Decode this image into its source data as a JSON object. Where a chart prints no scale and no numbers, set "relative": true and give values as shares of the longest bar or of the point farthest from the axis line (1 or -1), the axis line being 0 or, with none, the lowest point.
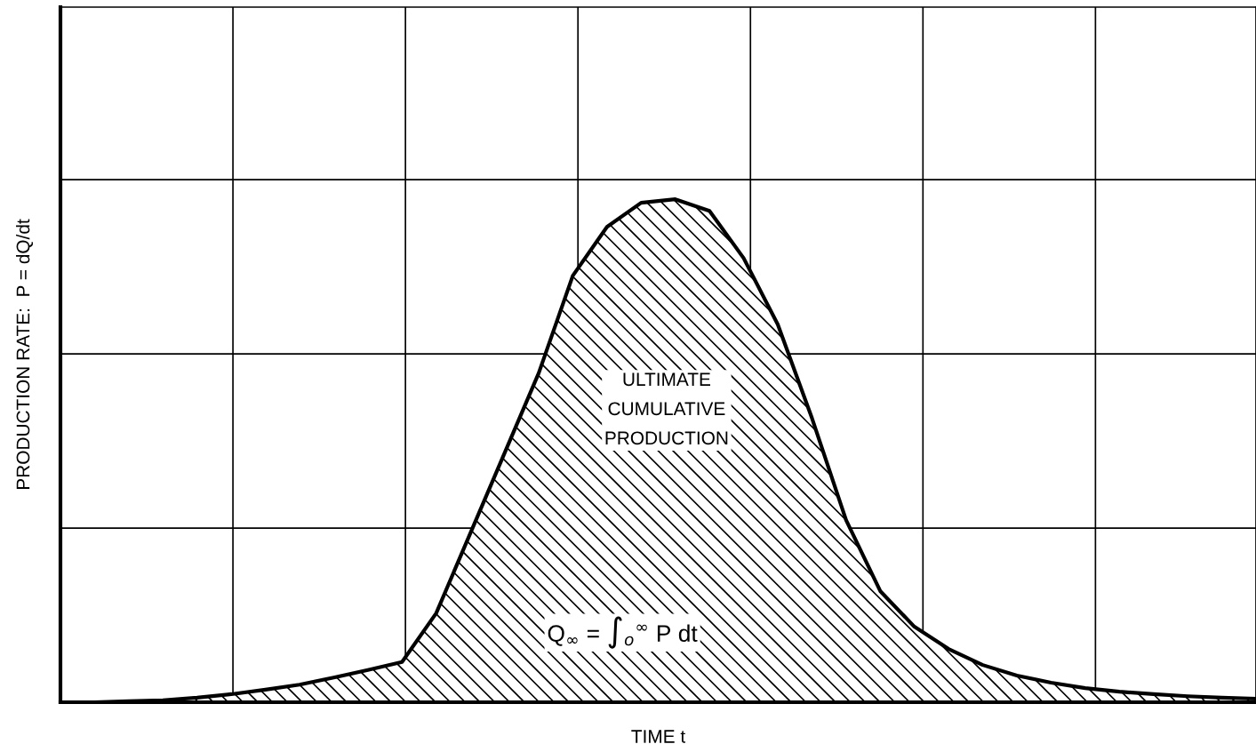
{
  "chart_data": {
    "type": "area",
    "relative": true,
    "xlabel": "TIME t",
    "ylabel": "PRODUCTION RATE:  P = dQ/dt",
    "categories": [
      null,
      null,
      null,
      null,
      null,
      null,
      null,
      null,
      null,
      null,
      null,
      null,
      null,
      null,
      null,
      null,
      null,
      null,
      null,
      null,
      null,
      null,
      null,
      null,
      null,
      null,
      null,
      null,
      null,
      null,
      null,
      null,
      null,
      null,
      null,
      null
    ],
    "series": [
      {
        "color": "#000000",
        "values": [
          0,
          0,
          0.002,
          0.004,
          0.009,
          0.016,
          0.025,
          0.035,
          0.049,
          0.064,
          0.08,
          0.177,
          0.336,
          0.495,
          0.654,
          0.848,
          0.945,
          0.993,
          1.0,
          0.977,
          0.883,
          0.751,
          0.565,
          0.362,
          0.221,
          0.15,
          0.106,
          0.074,
          0.053,
          0.039,
          0.028,
          0.021,
          0.016,
          0.012,
          0.009,
          0.007
        ]
      }
    ],
    "annotations": [
      "ULTIMATE\nCUMULATIVE\nPRODUCTION",
      "Q$_{∞}$ = ∫$_{o}$$^{∞}$ P dt"
    ],
    "grid": true
  }
}
